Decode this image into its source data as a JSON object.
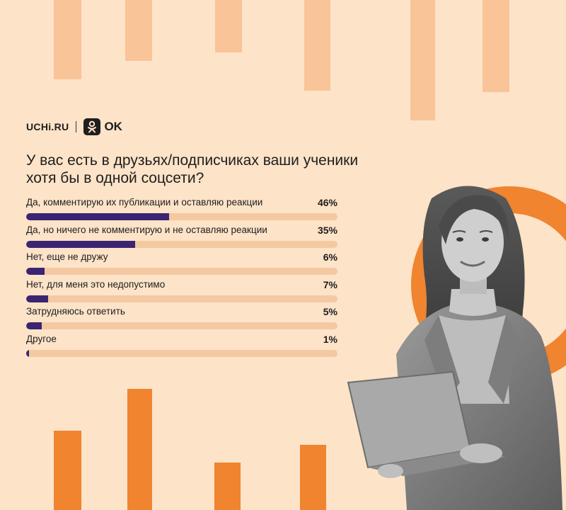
{
  "brand": {
    "uchi": "UCHi.RU",
    "ok": "OK"
  },
  "colors": {
    "background": "#fde3c8",
    "bar_fill": "#3b2472",
    "bar_track": "#f4c9a2",
    "accent_orange": "#f0842f",
    "accent_light": "#f9c498"
  },
  "chart_data": {
    "type": "bar",
    "orientation": "horizontal",
    "title": "У вас есть в друзьях/подписчиках ваши ученики хотя бы в одной соцсети?",
    "categories": [
      "Да, комментирую их публикации и оставляю реакции",
      "Да, но ничего не комментирую и не оставляю реакции",
      "Нет, еще не дружу",
      "Нет, для меня это недопустимо",
      "Затрудняюсь ответить",
      "Другое"
    ],
    "values": [
      46,
      35,
      6,
      7,
      5,
      1
    ],
    "value_labels": [
      "46%",
      "35%",
      "6%",
      "7%",
      "5%",
      "1%"
    ],
    "xlim": [
      0,
      100
    ],
    "unit": "%",
    "grid": false
  }
}
